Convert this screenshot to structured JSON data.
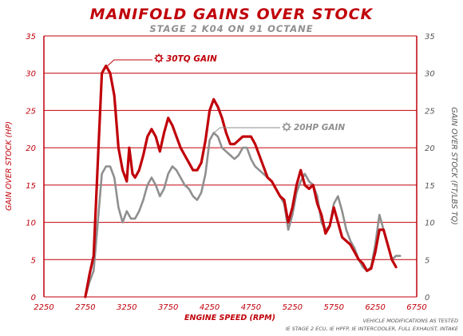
{
  "chart_data": {
    "type": "line",
    "title": "MANIFOLD GAINS OVER STOCK",
    "subtitle": "STAGE 2 K04 ON 91 OCTANE",
    "xlabel": "ENGINE SPEED (RPM)",
    "ylabel_left": "GAIN OVER STOCK (HP)",
    "ylabel_right": "GAIN OVER STOCK (FT/LBS TQ)",
    "xlim": [
      2250,
      6750
    ],
    "ylim": [
      0,
      35
    ],
    "x_ticks": [
      "2250",
      "2750",
      "3250",
      "3750",
      "4250",
      "4750",
      "5250",
      "5750",
      "6250",
      "6750"
    ],
    "y_ticks": [
      "0",
      "5",
      "10",
      "15",
      "20",
      "25",
      "30",
      "35"
    ],
    "grid": "horizontal",
    "footnote_line1": "VEHICLE MODIFICATIONS AS TESTED",
    "footnote_line2": "IE STAGE 2 ECU, IE HPFP, IE INTERCOOLER, FULL EXHAUST, INTAKE",
    "annotations": [
      {
        "text": "30TQ GAIN",
        "icon": "gear-icon",
        "series": "tq"
      },
      {
        "text": "20HP GAIN",
        "icon": "gear-icon",
        "series": "hp"
      }
    ],
    "series": [
      {
        "id": "tq",
        "color": "#c0000a",
        "points": [
          [
            2750,
            0
          ],
          [
            2800,
            3
          ],
          [
            2850,
            5.5
          ],
          [
            2900,
            18
          ],
          [
            2950,
            30
          ],
          [
            3000,
            31
          ],
          [
            3050,
            30
          ],
          [
            3100,
            27
          ],
          [
            3150,
            20
          ],
          [
            3200,
            17
          ],
          [
            3250,
            15.5
          ],
          [
            3280,
            20
          ],
          [
            3320,
            16.5
          ],
          [
            3350,
            16
          ],
          [
            3400,
            17
          ],
          [
            3450,
            19
          ],
          [
            3500,
            21.5
          ],
          [
            3550,
            22.5
          ],
          [
            3600,
            21.5
          ],
          [
            3650,
            19.5
          ],
          [
            3700,
            22
          ],
          [
            3750,
            24
          ],
          [
            3800,
            23
          ],
          [
            3850,
            21.5
          ],
          [
            3900,
            20
          ],
          [
            3950,
            19
          ],
          [
            4000,
            18
          ],
          [
            4050,
            17
          ],
          [
            4100,
            17
          ],
          [
            4150,
            18
          ],
          [
            4200,
            21
          ],
          [
            4250,
            25
          ],
          [
            4300,
            26.5
          ],
          [
            4350,
            25.5
          ],
          [
            4400,
            24
          ],
          [
            4450,
            22
          ],
          [
            4500,
            20.5
          ],
          [
            4550,
            20.5
          ],
          [
            4600,
            21
          ],
          [
            4650,
            21.5
          ],
          [
            4700,
            21.5
          ],
          [
            4750,
            21.5
          ],
          [
            4800,
            20.5
          ],
          [
            4850,
            19
          ],
          [
            4900,
            17.5
          ],
          [
            4950,
            16
          ],
          [
            5000,
            15.5
          ],
          [
            5050,
            14.5
          ],
          [
            5100,
            13.5
          ],
          [
            5150,
            13
          ],
          [
            5200,
            10
          ],
          [
            5250,
            12
          ],
          [
            5300,
            15
          ],
          [
            5350,
            17
          ],
          [
            5400,
            15
          ],
          [
            5450,
            14.5
          ],
          [
            5500,
            15
          ],
          [
            5550,
            12.5
          ],
          [
            5600,
            11
          ],
          [
            5650,
            8.5
          ],
          [
            5700,
            9.5
          ],
          [
            5750,
            12
          ],
          [
            5800,
            10
          ],
          [
            5850,
            8
          ],
          [
            5900,
            7.5
          ],
          [
            5950,
            7
          ],
          [
            6000,
            6
          ],
          [
            6050,
            5
          ],
          [
            6100,
            4.5
          ],
          [
            6150,
            3.5
          ],
          [
            6200,
            3.8
          ],
          [
            6250,
            6
          ],
          [
            6300,
            9
          ],
          [
            6350,
            9
          ],
          [
            6400,
            7
          ],
          [
            6450,
            5
          ],
          [
            6500,
            4
          ]
        ]
      },
      {
        "id": "hp",
        "color": "#8f8f8f",
        "points": [
          [
            2750,
            0
          ],
          [
            2800,
            2
          ],
          [
            2850,
            3.5
          ],
          [
            2900,
            10
          ],
          [
            2950,
            16.5
          ],
          [
            3000,
            17.5
          ],
          [
            3050,
            17.5
          ],
          [
            3100,
            16
          ],
          [
            3150,
            12
          ],
          [
            3200,
            10
          ],
          [
            3250,
            11.5
          ],
          [
            3300,
            10.5
          ],
          [
            3350,
            10.5
          ],
          [
            3400,
            11.5
          ],
          [
            3450,
            13
          ],
          [
            3500,
            15
          ],
          [
            3550,
            16
          ],
          [
            3600,
            15
          ],
          [
            3650,
            13.5
          ],
          [
            3700,
            14.5
          ],
          [
            3750,
            16.5
          ],
          [
            3800,
            17.5
          ],
          [
            3850,
            17
          ],
          [
            3900,
            16
          ],
          [
            3950,
            15
          ],
          [
            4000,
            14.5
          ],
          [
            4050,
            13.5
          ],
          [
            4100,
            13
          ],
          [
            4150,
            14
          ],
          [
            4200,
            16.5
          ],
          [
            4250,
            21
          ],
          [
            4300,
            22
          ],
          [
            4350,
            21.5
          ],
          [
            4400,
            20
          ],
          [
            4450,
            19.5
          ],
          [
            4500,
            19
          ],
          [
            4550,
            18.5
          ],
          [
            4600,
            19
          ],
          [
            4650,
            20
          ],
          [
            4700,
            20
          ],
          [
            4750,
            18.5
          ],
          [
            4800,
            17.5
          ],
          [
            4850,
            17
          ],
          [
            4900,
            16.5
          ],
          [
            4950,
            16
          ],
          [
            5000,
            15.5
          ],
          [
            5050,
            14.5
          ],
          [
            5100,
            13.5
          ],
          [
            5150,
            12.5
          ],
          [
            5200,
            9
          ],
          [
            5250,
            11
          ],
          [
            5300,
            14
          ],
          [
            5350,
            15.5
          ],
          [
            5400,
            16.5
          ],
          [
            5450,
            15.5
          ],
          [
            5500,
            15
          ],
          [
            5550,
            13.5
          ],
          [
            5600,
            10
          ],
          [
            5650,
            9
          ],
          [
            5700,
            9.5
          ],
          [
            5750,
            12.5
          ],
          [
            5800,
            13.5
          ],
          [
            5850,
            11.5
          ],
          [
            5900,
            9
          ],
          [
            5950,
            7.5
          ],
          [
            6000,
            6.5
          ],
          [
            6050,
            5
          ],
          [
            6100,
            4
          ],
          [
            6150,
            3.5
          ],
          [
            6200,
            4
          ],
          [
            6250,
            7
          ],
          [
            6300,
            11
          ],
          [
            6350,
            9
          ],
          [
            6400,
            7
          ],
          [
            6450,
            5
          ],
          [
            6500,
            5.5
          ],
          [
            6550,
            5.5
          ]
        ]
      }
    ]
  },
  "colors": {
    "title": "#c0000a",
    "subtitle": "#8f8f8f",
    "axis_red": "#c0000a",
    "grid": "#c0000a",
    "right_axis_text": "#555555"
  }
}
